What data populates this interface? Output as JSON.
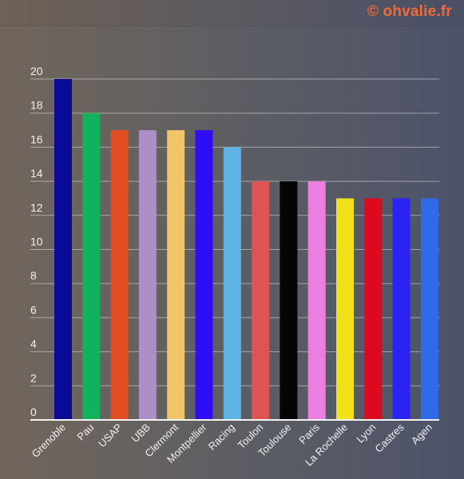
{
  "watermark": {
    "text": "© ohvalie.fr",
    "color": "#f06a3a"
  },
  "chart_data": {
    "type": "bar",
    "categories": [
      "Grenoble",
      "Pau",
      "USAP",
      "UBB",
      "Clermont",
      "Montpellier",
      "Racing",
      "Toulon",
      "Toulouse",
      "Paris",
      "La Rochelle",
      "Lyon",
      "Castres",
      "Agen"
    ],
    "values": [
      20,
      18,
      17,
      17,
      17,
      17,
      16,
      14,
      14,
      14,
      13,
      13,
      13,
      13
    ],
    "colors": [
      "#0a0a96",
      "#12b25c",
      "#e24e24",
      "#ad8fc7",
      "#efc568",
      "#2f0ef6",
      "#5eb3e6",
      "#df5353",
      "#050505",
      "#eb7fe0",
      "#f0e11a",
      "#dc0a1e",
      "#2b23f2",
      "#2f6be6"
    ],
    "yticks": [
      0,
      2,
      4,
      6,
      8,
      10,
      12,
      14,
      16,
      18,
      20
    ],
    "ylim": [
      0,
      20
    ],
    "grid": true,
    "title": "",
    "xlabel": "",
    "ylabel": ""
  }
}
